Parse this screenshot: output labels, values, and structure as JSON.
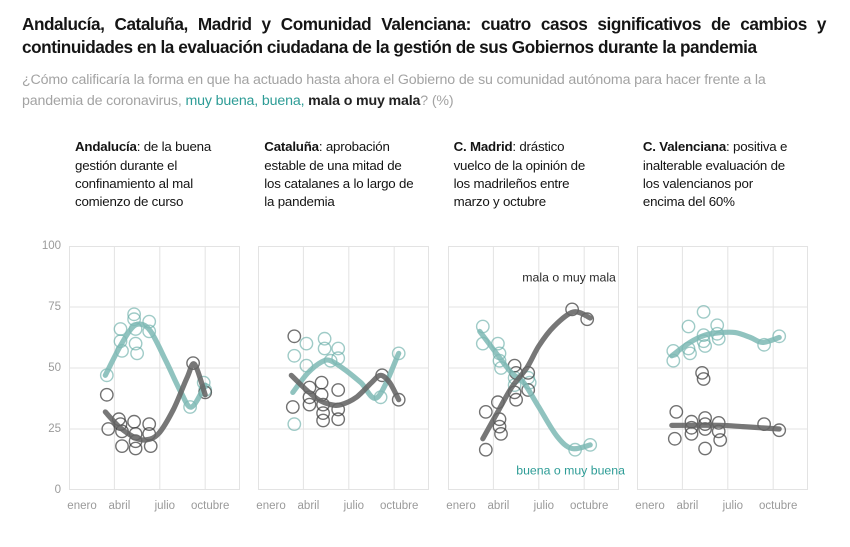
{
  "header": {
    "title": "Andalucía, Cataluña, Madrid y Comunidad Valenciana: cuatro casos significativos de cambios y continuidades en la evaluación ciudadana de la gestión de sus Gobiernos durante la pandemia",
    "question_prefix": "¿Cómo calificaría la forma en que ha actuado hasta ahora el Gobierno de su comunidad autónoma para hacer frente a la pandemia de coronavirus, ",
    "question_positive": "muy buena, buena,",
    "question_negative": " mala o muy mala",
    "question_suffix": "? (%)"
  },
  "colors": {
    "teal": "#5fa8a2",
    "teal_line": "#7db9b4",
    "teal_text": "#2d9c96",
    "dark": "#3a3a3a",
    "dark_line": "#646464",
    "dark_text": "#2b2b2b",
    "grid": "#e3e3e3",
    "axis_text": "#9a9a9a"
  },
  "axes": {
    "y_ticks": [
      0,
      25,
      50,
      75,
      100
    ],
    "y_domain": [
      0,
      100
    ],
    "x_tick_labels": [
      "enero",
      "abril",
      "julio",
      "octubre"
    ],
    "x_tick_months": [
      1,
      4,
      7,
      10
    ],
    "x_domain": [
      1,
      12.3
    ],
    "grid": true,
    "legend_position": "inline-annotations (third panel)"
  },
  "chart_data": [
    {
      "region": "Andalucía",
      "title_bold": "Andalucía",
      "title_rest": ": de la buena gestión durante el confinamiento al mal comienzo de curso",
      "type": "scatter",
      "series": [
        {
          "name": "buena o muy buena",
          "color_key": "teal",
          "scatter": [
            [
              3.5,
              47
            ],
            [
              4.4,
              66
            ],
            [
              4.4,
              61
            ],
            [
              4.5,
              57
            ],
            [
              5.3,
              72
            ],
            [
              5.3,
              70
            ],
            [
              5.4,
              66
            ],
            [
              5.4,
              60
            ],
            [
              5.5,
              56
            ],
            [
              6.3,
              69
            ],
            [
              6.3,
              65
            ],
            [
              9.0,
              34
            ],
            [
              9.9,
              44
            ],
            [
              10.0,
              41
            ]
          ],
          "trend": [
            [
              3.4,
              47
            ],
            [
              4.3,
              58
            ],
            [
              5.1,
              66
            ],
            [
              5.7,
              68
            ],
            [
              6.4,
              65
            ],
            [
              7.4,
              53
            ],
            [
              8.4,
              40
            ],
            [
              9.1,
              34
            ],
            [
              10.0,
              43
            ]
          ]
        },
        {
          "name": "mala o muy mala",
          "color_key": "dark",
          "scatter": [
            [
              3.5,
              39
            ],
            [
              3.6,
              25
            ],
            [
              4.3,
              29
            ],
            [
              4.4,
              27
            ],
            [
              4.5,
              24
            ],
            [
              4.5,
              18
            ],
            [
              5.3,
              28
            ],
            [
              5.4,
              23
            ],
            [
              5.4,
              20
            ],
            [
              5.4,
              17
            ],
            [
              6.3,
              27
            ],
            [
              6.3,
              23
            ],
            [
              6.4,
              18
            ],
            [
              9.2,
              52
            ],
            [
              10.0,
              40
            ]
          ],
          "trend": [
            [
              3.4,
              32
            ],
            [
              4.3,
              26
            ],
            [
              5.2,
              22
            ],
            [
              6.0,
              20.5
            ],
            [
              6.9,
              23
            ],
            [
              7.9,
              33
            ],
            [
              8.8,
              46
            ],
            [
              9.3,
              51.5
            ],
            [
              10.0,
              39
            ]
          ]
        }
      ],
      "annotations": []
    },
    {
      "region": "Cataluña",
      "title_bold": "Cataluña",
      "title_rest": ": aprobación estable de una mitad de los catalanes a lo largo de la pandemia",
      "type": "scatter",
      "series": [
        {
          "name": "buena o muy buena",
          "color_key": "teal",
          "scatter": [
            [
              3.4,
              55
            ],
            [
              3.4,
              27
            ],
            [
              4.2,
              60
            ],
            [
              4.2,
              51
            ],
            [
              5.4,
              62
            ],
            [
              5.4,
              58
            ],
            [
              5.8,
              53
            ],
            [
              6.3,
              58
            ],
            [
              6.3,
              54
            ],
            [
              9.1,
              38
            ],
            [
              10.3,
              56
            ]
          ],
          "trend": [
            [
              3.3,
              40
            ],
            [
              4.3,
              48
            ],
            [
              5.2,
              52.5
            ],
            [
              5.8,
              53
            ],
            [
              6.8,
              49
            ],
            [
              7.8,
              44
            ],
            [
              8.9,
              38
            ],
            [
              10.3,
              56
            ]
          ]
        },
        {
          "name": "mala o muy mala",
          "color_key": "dark",
          "scatter": [
            [
              3.4,
              63
            ],
            [
              3.3,
              34
            ],
            [
              4.4,
              42
            ],
            [
              4.4,
              38
            ],
            [
              4.4,
              35
            ],
            [
              5.2,
              44
            ],
            [
              5.2,
              39
            ],
            [
              5.3,
              35
            ],
            [
              5.3,
              31.5
            ],
            [
              5.3,
              28.5
            ],
            [
              6.3,
              41
            ],
            [
              6.3,
              33
            ],
            [
              6.3,
              29
            ],
            [
              9.2,
              47
            ],
            [
              10.3,
              37
            ]
          ],
          "trend": [
            [
              3.2,
              47
            ],
            [
              4.2,
              41
            ],
            [
              5.0,
              37
            ],
            [
              5.8,
              35
            ],
            [
              6.5,
              35
            ],
            [
              7.5,
              38
            ],
            [
              8.5,
              44
            ],
            [
              9.1,
              47
            ],
            [
              9.7,
              44
            ],
            [
              10.3,
              37
            ]
          ]
        }
      ],
      "annotations": []
    },
    {
      "region": "C. Madrid",
      "title_bold": "C. Madrid",
      "title_rest": ": drástico vuelco de la opinión de los madrileños entre marzo y octubre",
      "type": "scatter",
      "series": [
        {
          "name": "buena o muy buena",
          "color_key": "teal",
          "scatter": [
            [
              3.3,
              67
            ],
            [
              3.3,
              60
            ],
            [
              4.3,
              60
            ],
            [
              4.4,
              56
            ],
            [
              4.4,
              53
            ],
            [
              4.5,
              50
            ],
            [
              5.4,
              46
            ],
            [
              5.4,
              43
            ],
            [
              6.3,
              46
            ],
            [
              6.4,
              44
            ],
            [
              9.4,
              16.5
            ],
            [
              10.4,
              18.5
            ]
          ],
          "trend": [
            [
              3.1,
              65
            ],
            [
              4.2,
              56
            ],
            [
              5.2,
              48
            ],
            [
              6.0,
              44
            ],
            [
              7.0,
              34
            ],
            [
              8.2,
              22
            ],
            [
              9.2,
              17
            ],
            [
              10.4,
              18.5
            ]
          ]
        },
        {
          "name": "mala o muy mala",
          "color_key": "dark",
          "scatter": [
            [
              3.5,
              32
            ],
            [
              3.5,
              16.5
            ],
            [
              4.3,
              36
            ],
            [
              4.4,
              29
            ],
            [
              4.4,
              26
            ],
            [
              4.5,
              23
            ],
            [
              5.4,
              51
            ],
            [
              5.5,
              48
            ],
            [
              5.4,
              40
            ],
            [
              5.5,
              37
            ],
            [
              6.3,
              48
            ],
            [
              6.3,
              41
            ],
            [
              9.2,
              74
            ],
            [
              10.2,
              70
            ]
          ],
          "trend": [
            [
              3.3,
              21
            ],
            [
              4.2,
              31
            ],
            [
              5.2,
              42
            ],
            [
              6.2,
              50
            ],
            [
              7.0,
              59
            ],
            [
              8.0,
              67
            ],
            [
              9.3,
              73
            ],
            [
              10.4,
              70.5
            ]
          ]
        }
      ],
      "annotations": [
        {
          "text": "mala o muy mala",
          "month": 9.0,
          "value": 87,
          "color_key": "dark_text"
        },
        {
          "text": "buena o muy buena",
          "month": 9.1,
          "value": 8,
          "color_key": "teal_text"
        }
      ]
    },
    {
      "region": "C. Valenciana",
      "title_bold": "C. Valenciana",
      "title_rest": ": positiva e inalterable evaluación de los valencianos por encima del 60%",
      "type": "scatter",
      "series": [
        {
          "name": "buena o muy buena",
          "color_key": "teal",
          "scatter": [
            [
              3.4,
              57
            ],
            [
              3.4,
              53
            ],
            [
              4.4,
              67
            ],
            [
              4.4,
              58
            ],
            [
              4.5,
              56
            ],
            [
              5.4,
              73
            ],
            [
              5.4,
              63.5
            ],
            [
              5.4,
              61
            ],
            [
              5.5,
              59
            ],
            [
              6.3,
              67.5
            ],
            [
              6.3,
              64
            ],
            [
              6.4,
              62
            ],
            [
              9.4,
              59.5
            ],
            [
              10.4,
              63
            ]
          ],
          "trend": [
            [
              3.3,
              55
            ],
            [
              4.5,
              60.5
            ],
            [
              5.5,
              63.5
            ],
            [
              6.5,
              64.5
            ],
            [
              7.5,
              64.5
            ],
            [
              8.5,
              62.5
            ],
            [
              9.3,
              60.5
            ],
            [
              10.4,
              62.5
            ]
          ]
        },
        {
          "name": "mala o muy mala",
          "color_key": "dark",
          "scatter": [
            [
              3.6,
              32
            ],
            [
              3.5,
              21
            ],
            [
              4.6,
              28
            ],
            [
              4.6,
              25.5
            ],
            [
              4.6,
              23
            ],
            [
              5.3,
              48
            ],
            [
              5.4,
              45.5
            ],
            [
              5.5,
              29.5
            ],
            [
              5.5,
              27
            ],
            [
              5.5,
              25
            ],
            [
              5.5,
              17
            ],
            [
              6.4,
              27.5
            ],
            [
              6.4,
              24
            ],
            [
              6.5,
              20.5
            ],
            [
              9.4,
              27
            ],
            [
              10.4,
              24.5
            ]
          ],
          "trend": [
            [
              3.3,
              26.5
            ],
            [
              5.0,
              26.5
            ],
            [
              6.5,
              26.5
            ],
            [
              8.0,
              26
            ],
            [
              9.2,
              25.5
            ],
            [
              10.4,
              25
            ]
          ]
        }
      ],
      "annotations": []
    }
  ]
}
